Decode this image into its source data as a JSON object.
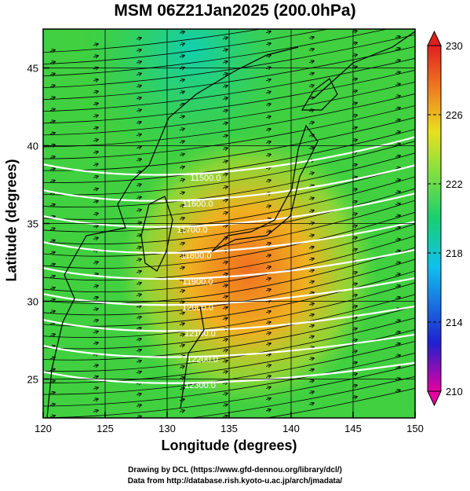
{
  "chart_data": {
    "type": "heatmap",
    "title": "MSM 06Z21Jan2025 (200.0hPa)",
    "xlabel": "Longitude (degrees)",
    "ylabel": "Latitude  (degrees)",
    "xlim": [
      120,
      150
    ],
    "ylim": [
      22.5,
      47.5
    ],
    "x_ticks": [
      "120",
      "125",
      "130",
      "135",
      "140",
      "145",
      "150"
    ],
    "y_ticks": [
      "25",
      "30",
      "35",
      "40",
      "45"
    ],
    "colorbar": {
      "range": [
        210,
        230
      ],
      "tick_labels": [
        "230",
        "226",
        "222",
        "218",
        "214",
        "210"
      ],
      "colors": [
        "#e600a0",
        "#2020d0",
        "#10c0f0",
        "#18d070",
        "#80e040",
        "#e8e020",
        "#f08020",
        "#e02020"
      ]
    },
    "contour_labels": [
      "11500.0",
      "11600.0",
      "11700.0",
      "11800.0",
      "11900.0",
      "12000.0",
      "12100.0",
      "12200.0",
      "12300.0"
    ],
    "temperature_field": [
      {
        "region": "north edge 46N",
        "value": 219
      },
      {
        "region": "Japan Sea 38N",
        "value": 222
      },
      {
        "region": "south of Japan 32N 135E",
        "value": 227
      },
      {
        "region": "East China Sea 30N 125E",
        "value": 225
      },
      {
        "region": "south 24N",
        "value": 223
      }
    ],
    "wind": "westerly vectors"
  },
  "credits": {
    "line1": "Drawing by DCL (https://www.gfd-dennou.org/library/dcl/)",
    "line2": "Data from http://database.rish.kyoto-u.ac.jp/arch/jmadata/"
  }
}
